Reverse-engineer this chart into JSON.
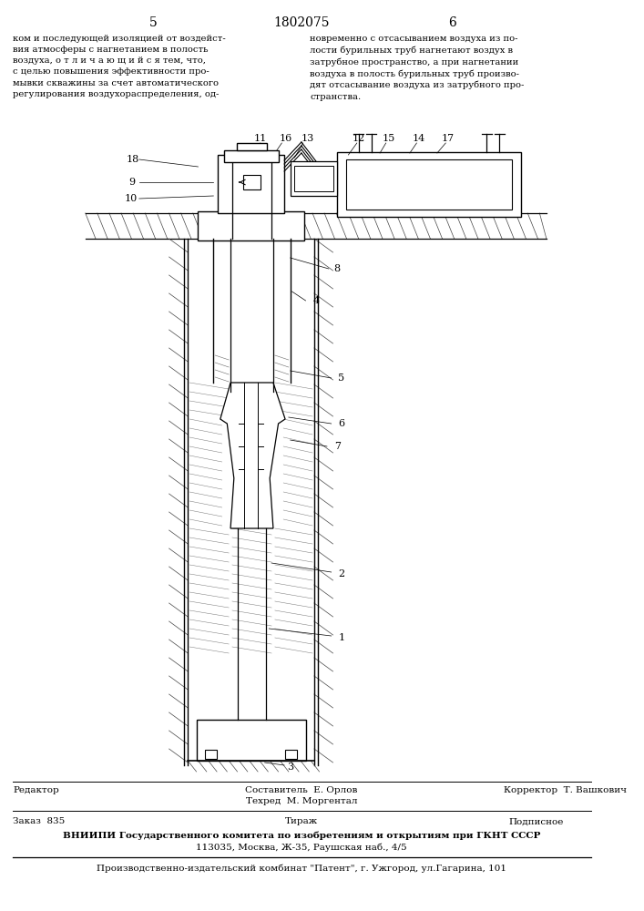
{
  "page_number_left": "5",
  "page_number_center": "1802075",
  "page_number_right": "6",
  "text_left": "ком и последующей изоляцией от воздейст-\nвия атмосферы с нагнетанием в полость\nвоздуха, о т л и ч а ю щ и й с я тем, что,\nс целью повышения эффективности про-\nмывки скважины за счет автоматического\nрегулирования воздухораспределения, од-",
  "text_right": "новременно с отсасыванием воздуха из по-\nлости бурильных труб нагнетают воздух в\nзатрубное пространство, а при нагнетании\nвоздуха в полость бурильных труб произво-\nдят отсасывание воздуха из затрубного про-\nстранства.",
  "footer_editor": "Редактор",
  "footer_compiler": "Составитель  Е. Орлов",
  "footer_techred": "Техред  М. Моргентал",
  "footer_corrector": "Корректор  Т. Вашкович",
  "footer_order": "Заказ  835",
  "footer_circulation": "Тираж",
  "footer_subscription": "Подписное",
  "footer_vniip": "ВНИИПИ Государственного комитета по изобретениям и открытиям при ГКНТ СССР",
  "footer_address1": "113035, Москва, Ж-35, Раушская наб., 4/5",
  "footer_publisher": "Производственно-издательский комбинат \"Патент\", г. Ужгород, ул.Гагарина, 101",
  "bg_color": "#ffffff",
  "line_color": "#000000"
}
